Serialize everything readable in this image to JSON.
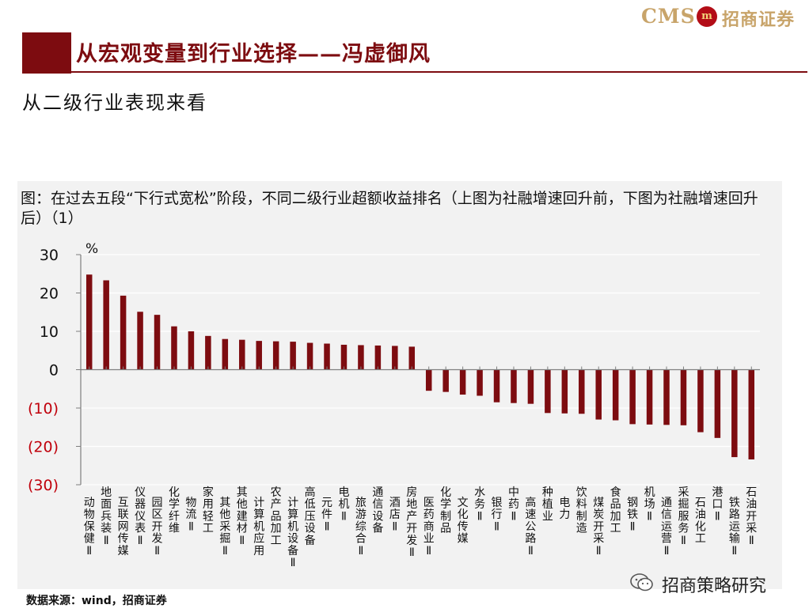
{
  "header": {
    "logo_cms": "CMS",
    "logo_badge": "m",
    "logo_name": "招商证券",
    "title": "从宏观变量到行业选择——冯虚御风",
    "subtitle": "从二级行业表现来看"
  },
  "chart_caption": "图：在过去五段“下行式宽松”阶段，不同二级行业超额收益排名（上图为社融增速回升前，下图为社融增速回升后）（1）",
  "footer": {
    "source": "数据来源：wind，招商证券",
    "watermark": "招商策略研究"
  },
  "colors": {
    "bar": "#7d0c10",
    "negative_tick": "#c0000b",
    "axis": "#7f7f7f",
    "grid": "#ffffff",
    "panel": "#f2f2f2"
  },
  "chart_data": {
    "type": "bar",
    "unit": "%",
    "ylim": [
      -30,
      30
    ],
    "yticks": [
      {
        "value": 30,
        "label": "30"
      },
      {
        "value": 20,
        "label": "20"
      },
      {
        "value": 10,
        "label": "10"
      },
      {
        "value": 0,
        "label": "0"
      },
      {
        "value": -10,
        "label": "(10)"
      },
      {
        "value": -20,
        "label": "(20)"
      },
      {
        "value": -30,
        "label": "(30)"
      }
    ],
    "grid": true,
    "categories": [
      "动物保健Ⅱ",
      "地面兵装Ⅱ",
      "互联网传媒",
      "仪器仪表Ⅱ",
      "园区开发Ⅱ",
      "化学纤维",
      "物流Ⅱ",
      "家用轻工",
      "其他采掘Ⅱ",
      "其他建材Ⅱ",
      "计算机应用",
      "农产品加工",
      "计算机设备Ⅱ",
      "高低压设备",
      "元件Ⅱ",
      "电机Ⅱ",
      "旅游综合Ⅱ",
      "通信设备",
      "酒店Ⅱ",
      "房地产开发Ⅱ",
      "医药商业Ⅱ",
      "化学制品",
      "文化传媒",
      "水务Ⅱ",
      "银行Ⅱ",
      "中药Ⅱ",
      "高速公路Ⅱ",
      "种植业",
      "电力",
      "饮料制造",
      "煤炭开采Ⅱ",
      "食品加工",
      "钢铁Ⅱ",
      "机场Ⅱ",
      "通信运营Ⅱ",
      "采掘服务Ⅱ",
      "石油化工",
      "港口Ⅱ",
      "铁路运输Ⅱ",
      "石油开采Ⅱ"
    ],
    "values": [
      24.8,
      23.3,
      19.3,
      15.1,
      14.3,
      11.3,
      10.0,
      8.8,
      8.0,
      7.8,
      7.5,
      7.4,
      7.3,
      7.0,
      6.8,
      6.5,
      6.4,
      6.3,
      6.2,
      6.0,
      -5.5,
      -5.8,
      -6.5,
      -6.8,
      -8.5,
      -8.7,
      -8.9,
      -11.3,
      -11.4,
      -11.5,
      -13.0,
      -13.2,
      -14.2,
      -14.3,
      -14.4,
      -14.5,
      -16.3,
      -17.8,
      -22.8,
      -23.4
    ]
  }
}
